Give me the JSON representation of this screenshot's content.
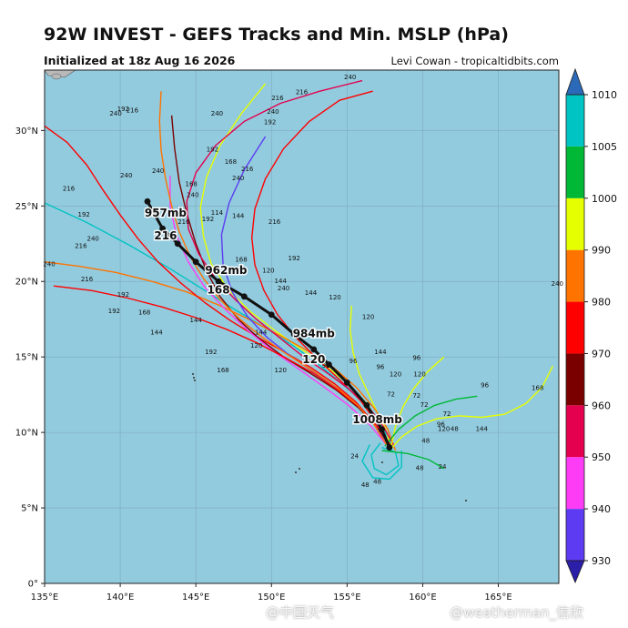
{
  "title": "92W INVEST - GEFS Tracks and Min. MSLP (hPa)",
  "subtitle": "Initialized at 18z Aug 16 2026",
  "credit": "Levi Cowan - tropicaltidbits.com",
  "watermarks": [
    "@中国天气",
    "@weatherman_信欣"
  ],
  "colors": {
    "ocean": "#92cbde",
    "land": "#b9b9b9",
    "grid": "#7fa9bd",
    "mean_track": "#111111"
  },
  "chart_data": {
    "type": "map",
    "xlim": [
      135,
      169
    ],
    "ylim": [
      0,
      34
    ],
    "lon_ticks": [
      135,
      140,
      145,
      150,
      155,
      160,
      165
    ],
    "lon_tick_labels": [
      "135°E",
      "140°E",
      "145°E",
      "150°E",
      "155°E",
      "160°E",
      "165°E"
    ],
    "lat_ticks": [
      0,
      5,
      10,
      15,
      20,
      25,
      30
    ],
    "lat_tick_labels": [
      "0°",
      "5°N",
      "10°N",
      "15°N",
      "20°N",
      "25°N",
      "30°N"
    ],
    "colorbar": {
      "ticks": [
        930,
        940,
        950,
        960,
        970,
        980,
        990,
        1000,
        1005,
        1010
      ],
      "tick_labels": [
        "930",
        "940",
        "950",
        "960",
        "970",
        "980",
        "990",
        "1000",
        "1005",
        "1010"
      ],
      "bands": [
        {
          "from": 930,
          "to": 940,
          "color": "#5c3bf3"
        },
        {
          "from": 940,
          "to": 950,
          "color": "#ff3cf5"
        },
        {
          "from": 950,
          "to": 960,
          "color": "#e4004f"
        },
        {
          "from": 960,
          "to": 970,
          "color": "#7a0000"
        },
        {
          "from": 970,
          "to": 980,
          "color": "#ff0000"
        },
        {
          "from": 980,
          "to": 990,
          "color": "#ff7300"
        },
        {
          "from": 990,
          "to": 1000,
          "color": "#e6ff00"
        },
        {
          "from": 1000,
          "to": 1005,
          "color": "#00b836"
        },
        {
          "from": 1005,
          "to": 1010,
          "color": "#00c3c3"
        }
      ],
      "extend_low_color": "#2b1ea8",
      "extend_high_color": "#2a6ab8"
    },
    "mean_track": {
      "points": [
        {
          "lon": 157.8,
          "lat": 9.0
        },
        {
          "lon": 157.3,
          "lat": 10.2
        },
        {
          "lon": 156.3,
          "lat": 11.8
        },
        {
          "lon": 155.0,
          "lat": 13.3
        },
        {
          "lon": 153.8,
          "lat": 14.5
        },
        {
          "lon": 152.8,
          "lat": 15.5
        },
        {
          "lon": 151.5,
          "lat": 16.5
        },
        {
          "lon": 150.0,
          "lat": 17.8
        },
        {
          "lon": 148.2,
          "lat": 19.0
        },
        {
          "lon": 146.5,
          "lat": 20.0
        },
        {
          "lon": 145.0,
          "lat": 21.3
        },
        {
          "lon": 143.8,
          "lat": 22.5
        },
        {
          "lon": 142.8,
          "lat": 23.5
        },
        {
          "lon": 141.8,
          "lat": 25.3
        }
      ],
      "labels": [
        {
          "text": "1008mb",
          "lon": 157.0,
          "lat": 10.6
        },
        {
          "text": "984mb",
          "lon": 152.8,
          "lat": 16.3
        },
        {
          "text": "120",
          "lon": 152.8,
          "lat": 14.6
        },
        {
          "text": "962mb",
          "lon": 147.0,
          "lat": 20.5
        },
        {
          "text": "168",
          "lon": 146.5,
          "lat": 19.2
        },
        {
          "text": "957mb",
          "lon": 143.0,
          "lat": 24.3
        },
        {
          "text": "216",
          "lon": 143.0,
          "lat": 22.8
        }
      ]
    },
    "ensemble_hour_labels": [
      {
        "text": "240",
        "lon": 140.4,
        "lat": 26.9
      },
      {
        "text": "216",
        "lon": 136.6,
        "lat": 26.0
      },
      {
        "text": "192",
        "lon": 137.6,
        "lat": 24.3
      },
      {
        "text": "240",
        "lon": 138.2,
        "lat": 22.7
      },
      {
        "text": "216",
        "lon": 137.4,
        "lat": 22.2
      },
      {
        "text": "240",
        "lon": 135.3,
        "lat": 21.0
      },
      {
        "text": "216",
        "lon": 137.8,
        "lat": 20.0
      },
      {
        "text": "192",
        "lon": 140.2,
        "lat": 19.0
      },
      {
        "text": "192",
        "lon": 139.6,
        "lat": 17.9
      },
      {
        "text": "168",
        "lon": 141.6,
        "lat": 17.8
      },
      {
        "text": "144",
        "lon": 142.4,
        "lat": 16.5
      },
      {
        "text": "240",
        "lon": 139.7,
        "lat": 31.0
      },
      {
        "text": "216",
        "lon": 140.8,
        "lat": 31.2
      },
      {
        "text": "240",
        "lon": 142.5,
        "lat": 27.2
      },
      {
        "text": "192",
        "lon": 140.2,
        "lat": 31.3
      },
      {
        "text": "240",
        "lon": 146.4,
        "lat": 31.0
      },
      {
        "text": "192",
        "lon": 146.1,
        "lat": 28.6
      },
      {
        "text": "168",
        "lon": 147.3,
        "lat": 27.8
      },
      {
        "text": "240",
        "lon": 147.8,
        "lat": 26.7
      },
      {
        "text": "216",
        "lon": 148.4,
        "lat": 27.3
      },
      {
        "text": "240",
        "lon": 150.1,
        "lat": 31.1
      },
      {
        "text": "192",
        "lon": 149.9,
        "lat": 30.4
      },
      {
        "text": "216",
        "lon": 150.4,
        "lat": 32.0
      },
      {
        "text": "216",
        "lon": 152.0,
        "lat": 32.4
      },
      {
        "text": "240",
        "lon": 155.2,
        "lat": 33.4
      },
      {
        "text": "168",
        "lon": 144.7,
        "lat": 26.3
      },
      {
        "text": "240",
        "lon": 144.8,
        "lat": 25.6
      },
      {
        "text": "216",
        "lon": 144.2,
        "lat": 23.8
      },
      {
        "text": "192",
        "lon": 145.8,
        "lat": 24.0
      },
      {
        "text": "144",
        "lon": 147.8,
        "lat": 24.2
      },
      {
        "text": "114",
        "lon": 146.4,
        "lat": 24.4
      },
      {
        "text": "216",
        "lon": 150.2,
        "lat": 23.8
      },
      {
        "text": "192",
        "lon": 151.5,
        "lat": 21.4
      },
      {
        "text": "168",
        "lon": 148.0,
        "lat": 21.3
      },
      {
        "text": "120",
        "lon": 149.8,
        "lat": 20.6
      },
      {
        "text": "144",
        "lon": 150.6,
        "lat": 19.9
      },
      {
        "text": "144",
        "lon": 152.6,
        "lat": 19.1
      },
      {
        "text": "120",
        "lon": 154.2,
        "lat": 18.8
      },
      {
        "text": "120",
        "lon": 156.4,
        "lat": 17.5
      },
      {
        "text": "240",
        "lon": 150.8,
        "lat": 19.4
      },
      {
        "text": "144",
        "lon": 145.0,
        "lat": 17.3
      },
      {
        "text": "192",
        "lon": 146.0,
        "lat": 15.2
      },
      {
        "text": "168",
        "lon": 146.8,
        "lat": 14.0
      },
      {
        "text": "120",
        "lon": 149.0,
        "lat": 15.6
      },
      {
        "text": "144",
        "lon": 149.3,
        "lat": 16.5
      },
      {
        "text": "120",
        "lon": 150.6,
        "lat": 14.0
      },
      {
        "text": "96",
        "lon": 153.6,
        "lat": 14.3
      },
      {
        "text": "96",
        "lon": 155.4,
        "lat": 14.6
      },
      {
        "text": "144",
        "lon": 157.2,
        "lat": 15.2
      },
      {
        "text": "96",
        "lon": 159.6,
        "lat": 14.8
      },
      {
        "text": "96",
        "lon": 157.2,
        "lat": 14.2
      },
      {
        "text": "120",
        "lon": 158.2,
        "lat": 13.7
      },
      {
        "text": "120",
        "lon": 159.8,
        "lat": 13.7
      },
      {
        "text": "96",
        "lon": 164.1,
        "lat": 13.0
      },
      {
        "text": "72",
        "lon": 157.9,
        "lat": 12.4
      },
      {
        "text": "72",
        "lon": 159.6,
        "lat": 12.3
      },
      {
        "text": "72",
        "lon": 160.1,
        "lat": 11.7
      },
      {
        "text": "72",
        "lon": 161.6,
        "lat": 11.1
      },
      {
        "text": "96",
        "lon": 161.2,
        "lat": 10.4
      },
      {
        "text": "120",
        "lon": 161.4,
        "lat": 10.1
      },
      {
        "text": "48",
        "lon": 162.1,
        "lat": 10.1
      },
      {
        "text": "144",
        "lon": 163.9,
        "lat": 10.1
      },
      {
        "text": "168",
        "lon": 167.6,
        "lat": 12.8
      },
      {
        "text": "240",
        "lon": 168.9,
        "lat": 19.7
      },
      {
        "text": "24",
        "lon": 161.3,
        "lat": 7.6
      },
      {
        "text": "48",
        "lon": 159.8,
        "lat": 7.5
      },
      {
        "text": "48",
        "lon": 160.2,
        "lat": 9.3
      },
      {
        "text": "24",
        "lon": 155.5,
        "lat": 8.3
      },
      {
        "text": "48",
        "lon": 157.0,
        "lat": 6.6
      },
      {
        "text": "48",
        "lon": 156.2,
        "lat": 6.4
      }
    ]
  }
}
